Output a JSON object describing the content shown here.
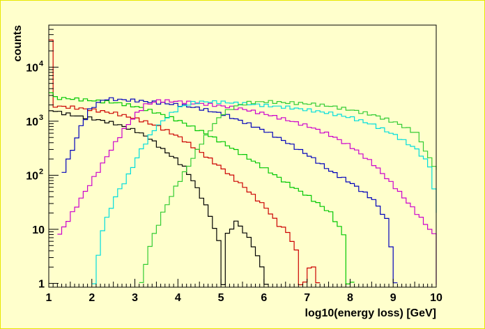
{
  "chart_data": {
    "type": "line",
    "xlabel": "log10(energy loss) [GeV]",
    "ylabel": "counts",
    "xlim": [
      1,
      10
    ],
    "ylim": [
      0.85,
      60000
    ],
    "yscale": "log",
    "grid": false,
    "legend": "none",
    "x_ticks": [
      "1",
      "2",
      "3",
      "4",
      "5",
      "6",
      "7",
      "8",
      "9",
      "10"
    ],
    "y_ticks": [
      {
        "value": 1,
        "label": "1"
      },
      {
        "value": 10,
        "label": "10"
      },
      {
        "value": 100,
        "label": "10",
        "exp": "2"
      },
      {
        "value": 1000,
        "label": "10",
        "exp": "3"
      },
      {
        "value": 10000,
        "label": "10",
        "exp": "4"
      }
    ],
    "series": [
      {
        "color": "#000000",
        "points": [
          [
            1.0,
            1600
          ],
          [
            1.3,
            1400
          ],
          [
            1.6,
            1250
          ],
          [
            2.0,
            1100
          ],
          [
            2.5,
            900
          ],
          [
            3.0,
            650
          ],
          [
            3.3,
            480
          ],
          [
            3.6,
            300
          ],
          [
            3.9,
            200
          ],
          [
            4.1,
            140
          ],
          [
            4.3,
            80
          ],
          [
            4.5,
            40
          ],
          [
            4.7,
            18
          ],
          [
            4.9,
            6
          ],
          [
            5.0,
            1
          ],
          [
            5.05,
            1
          ],
          [
            5.1,
            8
          ],
          [
            5.3,
            14
          ],
          [
            5.5,
            9
          ],
          [
            5.7,
            5
          ],
          [
            5.9,
            2
          ],
          [
            6.0,
            1
          ]
        ]
      },
      {
        "color": "#cc0000",
        "points": [
          [
            1.0,
            30000
          ],
          [
            1.1,
            1900
          ],
          [
            1.5,
            1800
          ],
          [
            2.0,
            1600
          ],
          [
            2.5,
            1400
          ],
          [
            3.0,
            1100
          ],
          [
            3.5,
            800
          ],
          [
            4.0,
            500
          ],
          [
            4.5,
            260
          ],
          [
            5.0,
            130
          ],
          [
            5.5,
            60
          ],
          [
            6.0,
            25
          ],
          [
            6.3,
            12
          ],
          [
            6.5,
            9
          ],
          [
            6.7,
            4
          ],
          [
            6.8,
            1
          ],
          [
            6.9,
            1
          ],
          [
            7.0,
            2
          ],
          [
            7.1,
            2
          ],
          [
            7.2,
            1
          ]
        ]
      },
      {
        "color": "#00c800",
        "points": [
          [
            1.0,
            3500
          ],
          [
            1.1,
            2700
          ],
          [
            1.5,
            2600
          ],
          [
            2.0,
            2400
          ],
          [
            2.5,
            2200
          ],
          [
            3.0,
            1850
          ],
          [
            3.5,
            1400
          ],
          [
            4.0,
            1000
          ],
          [
            4.5,
            650
          ],
          [
            5.0,
            400
          ],
          [
            5.5,
            230
          ],
          [
            6.0,
            130
          ],
          [
            6.5,
            70
          ],
          [
            7.0,
            40
          ],
          [
            7.5,
            20
          ],
          [
            7.8,
            8
          ],
          [
            7.9,
            1
          ],
          [
            8.0,
            1
          ]
        ]
      },
      {
        "color": "#0000bb",
        "points": [
          [
            1.3,
            120
          ],
          [
            1.5,
            300
          ],
          [
            1.7,
            800
          ],
          [
            1.9,
            1600
          ],
          [
            2.1,
            2200
          ],
          [
            2.3,
            2600
          ],
          [
            2.6,
            2500
          ],
          [
            3.0,
            2400
          ],
          [
            3.5,
            2200
          ],
          [
            4.0,
            2000
          ],
          [
            4.5,
            1700
          ],
          [
            5.0,
            1350
          ],
          [
            5.5,
            950
          ],
          [
            6.0,
            650
          ],
          [
            6.5,
            400
          ],
          [
            7.0,
            230
          ],
          [
            7.5,
            120
          ],
          [
            8.0,
            70
          ],
          [
            8.5,
            35
          ],
          [
            8.8,
            15
          ],
          [
            8.9,
            5
          ],
          [
            9.0,
            1
          ]
        ]
      },
      {
        "color": "#cc00cc",
        "points": [
          [
            1.2,
            8
          ],
          [
            1.5,
            20
          ],
          [
            1.8,
            50
          ],
          [
            2.1,
            120
          ],
          [
            2.4,
            300
          ],
          [
            2.7,
            700
          ],
          [
            3.0,
            1400
          ],
          [
            3.2,
            2000
          ],
          [
            3.5,
            2400
          ],
          [
            4.0,
            2300
          ],
          [
            4.5,
            2100
          ],
          [
            5.0,
            1900
          ],
          [
            5.5,
            1650
          ],
          [
            6.0,
            1350
          ],
          [
            6.5,
            1050
          ],
          [
            7.0,
            800
          ],
          [
            7.5,
            550
          ],
          [
            8.0,
            330
          ],
          [
            8.5,
            160
          ],
          [
            9.0,
            60
          ],
          [
            9.5,
            20
          ],
          [
            9.9,
            8
          ],
          [
            10.0,
            1
          ]
        ]
      },
      {
        "color": "#00dddd",
        "points": [
          [
            2.0,
            1
          ],
          [
            2.2,
            10
          ],
          [
            2.5,
            40
          ],
          [
            2.8,
            100
          ],
          [
            3.1,
            300
          ],
          [
            3.4,
            700
          ],
          [
            3.7,
            1200
          ],
          [
            4.0,
            1800
          ],
          [
            4.3,
            2200
          ],
          [
            4.6,
            2300
          ],
          [
            5.0,
            2250
          ],
          [
            5.5,
            2100
          ],
          [
            6.0,
            1950
          ],
          [
            6.5,
            1800
          ],
          [
            7.0,
            1600
          ],
          [
            7.5,
            1400
          ],
          [
            8.0,
            1150
          ],
          [
            8.5,
            850
          ],
          [
            9.0,
            550
          ],
          [
            9.5,
            300
          ],
          [
            9.8,
            150
          ],
          [
            10.0,
            20
          ]
        ]
      },
      {
        "color": "#33cc33",
        "points": [
          [
            3.1,
            1
          ],
          [
            3.3,
            5
          ],
          [
            3.6,
            20
          ],
          [
            3.9,
            60
          ],
          [
            4.2,
            150
          ],
          [
            4.5,
            400
          ],
          [
            4.8,
            900
          ],
          [
            5.0,
            1400
          ],
          [
            5.3,
            1900
          ],
          [
            5.6,
            2200
          ],
          [
            6.0,
            2300
          ],
          [
            6.5,
            2200
          ],
          [
            7.0,
            2100
          ],
          [
            7.5,
            1900
          ],
          [
            8.0,
            1600
          ],
          [
            8.5,
            1300
          ],
          [
            9.0,
            950
          ],
          [
            9.5,
            600
          ],
          [
            9.8,
            200
          ],
          [
            10.0,
            120
          ]
        ]
      }
    ]
  }
}
